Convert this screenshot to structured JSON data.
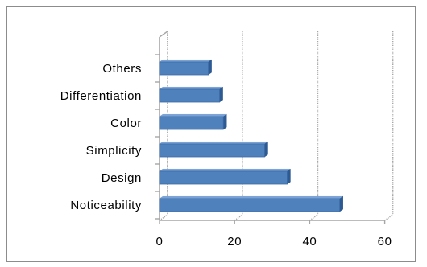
{
  "chart_data": {
    "type": "bar",
    "orientation": "horizontal",
    "style": "3d",
    "categories": [
      "Noticeability",
      "Design",
      "Simplicity",
      "Color",
      "Differentiation",
      "Others"
    ],
    "values": [
      48,
      34,
      28,
      17,
      16,
      13
    ],
    "title": "",
    "xlabel": "",
    "ylabel": "",
    "xlim": [
      0,
      60
    ],
    "xticks": [
      0,
      20,
      40,
      60
    ],
    "grid": true,
    "legend": "none",
    "colors": {
      "bar": "#4f81bd",
      "bar_top": "#7aa2d6",
      "bar_end": "#2e5a92",
      "grid": "#a6a6a6",
      "frame": "#8c8c8c"
    }
  }
}
